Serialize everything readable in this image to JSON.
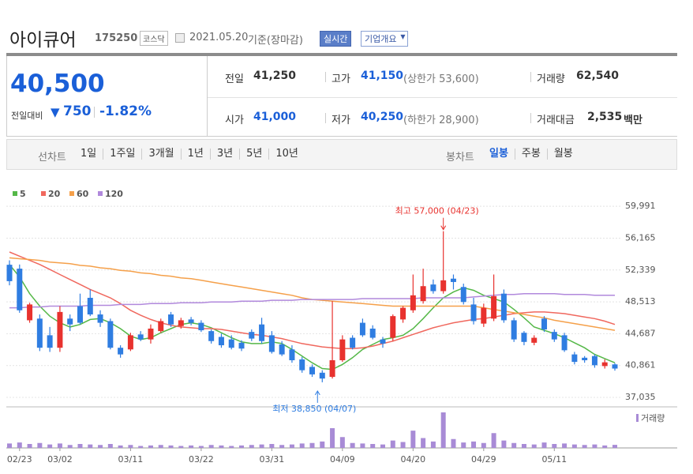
{
  "header": {
    "title": "아이큐어",
    "code": "175250",
    "market": "코스닥",
    "date": "2021.05.20",
    "basis": "기준(장마감)",
    "buttons": [
      "실시간",
      "기업개요"
    ]
  },
  "quote": {
    "price": "40,500",
    "change_label": "전일대비",
    "change": "750",
    "change_rate": "-1.82%",
    "fields": [
      {
        "label": "전일",
        "value": "41,250"
      },
      {
        "label": "고가",
        "value": "41,150",
        "note": "(상한가 53,600)"
      },
      {
        "label": "거래량",
        "value": "62,540"
      },
      {
        "label": "시가",
        "value": "41,000"
      },
      {
        "label": "저가",
        "value": "40,250",
        "note": "(하한가 28,900)"
      },
      {
        "label": "거래대금",
        "value": "2,535",
        "unit": "백만"
      }
    ]
  },
  "tabs": {
    "line_label": "선차트",
    "line": [
      "1일",
      "1주일",
      "3개월",
      "1년",
      "3년",
      "5년",
      "10년"
    ],
    "candle_label": "봉차트",
    "candle": [
      "일봉",
      "주봉",
      "월봉"
    ]
  },
  "chart_data": [
    {
      "type": "candlestick",
      "categories": [
        null,
        "02/23",
        null,
        null,
        null,
        "03/02",
        null,
        null,
        null,
        null,
        null,
        null,
        "03/11",
        null,
        null,
        null,
        null,
        null,
        null,
        "03/22",
        null,
        null,
        null,
        null,
        null,
        null,
        "03/31",
        null,
        null,
        null,
        null,
        null,
        null,
        "04/09",
        null,
        null,
        null,
        null,
        null,
        null,
        "04/20",
        null,
        null,
        null,
        null,
        null,
        null,
        "04/29",
        null,
        null,
        null,
        null,
        null,
        null,
        "05/11",
        null,
        null,
        null,
        null,
        null,
        null
      ],
      "open": [
        52970,
        52500,
        46300,
        46500,
        44500,
        43000,
        46500,
        48000,
        49000,
        47000,
        46200,
        43000,
        42800,
        44600,
        44000,
        45000,
        47000,
        45600,
        46400,
        46000,
        45000,
        44300,
        44000,
        43600,
        44900,
        45800,
        44500,
        43400,
        42800,
        41600,
        40700,
        40000,
        39500,
        41500,
        44200,
        46000,
        45300,
        44000,
        44200,
        46400,
        47500,
        48600,
        50600,
        49800,
        51300,
        50300,
        48200,
        45900,
        46500,
        49500,
        46300,
        44800,
        43600,
        46500,
        44900,
        44500,
        42200,
        41800,
        42000,
        40800,
        41000
      ],
      "high": [
        53500,
        53000,
        48400,
        47000,
        45500,
        48000,
        47000,
        49500,
        50000,
        47500,
        46500,
        43300,
        44800,
        45000,
        45800,
        46500,
        47300,
        46600,
        46700,
        46300,
        45200,
        44700,
        44500,
        43900,
        45200,
        46600,
        45000,
        43800,
        43300,
        41900,
        41000,
        40300,
        48600,
        44500,
        44500,
        46500,
        45700,
        44300,
        47000,
        48000,
        51800,
        52500,
        51200,
        57000,
        51800,
        50700,
        49000,
        48300,
        51800,
        50000,
        46600,
        45000,
        44500,
        46800,
        45200,
        44800,
        42500,
        42000,
        42200,
        41600,
        41150
      ],
      "low": [
        50500,
        47200,
        46000,
        42600,
        42500,
        42500,
        45000,
        45800,
        46800,
        45500,
        42800,
        41800,
        42600,
        43800,
        43500,
        44800,
        45500,
        45300,
        45700,
        44900,
        43500,
        43000,
        42800,
        42600,
        43800,
        43500,
        42300,
        42000,
        41200,
        40000,
        39500,
        38850,
        39300,
        41300,
        42800,
        44300,
        44000,
        43000,
        43800,
        46000,
        47200,
        48300,
        49500,
        49500,
        50000,
        48200,
        45800,
        45500,
        46200,
        46000,
        43700,
        43300,
        43300,
        44900,
        43700,
        42500,
        41000,
        41200,
        40600,
        40500,
        40250
      ],
      "close": [
        51000,
        47500,
        48200,
        43000,
        43000,
        47300,
        45800,
        46000,
        47000,
        46000,
        43000,
        42200,
        44500,
        44000,
        45300,
        46200,
        45800,
        46300,
        46000,
        45100,
        43800,
        43300,
        43000,
        42900,
        44100,
        43800,
        42500,
        42200,
        41500,
        40300,
        39800,
        39300,
        41500,
        44000,
        43000,
        44500,
        44200,
        43500,
        46800,
        47800,
        49300,
        50400,
        49800,
        51100,
        50900,
        48500,
        46200,
        47800,
        49200,
        46300,
        44000,
        43700,
        44200,
        45200,
        44000,
        42700,
        41300,
        41500,
        40900,
        41250,
        40500
      ],
      "up_color": "#e8322e",
      "down_color": "#2f7de1",
      "series": [
        {
          "name": "5",
          "color": "#55b848",
          "values": [
            53000,
            51500,
            49500,
            48000,
            46800,
            46000,
            45500,
            45800,
            46400,
            46500,
            46000,
            45300,
            44400,
            44000,
            44200,
            44800,
            45300,
            45800,
            46000,
            45800,
            45400,
            44800,
            44200,
            43700,
            43500,
            43500,
            43700,
            43500,
            42800,
            42000,
            41200,
            40500,
            40400,
            41000,
            41800,
            42800,
            43400,
            44000,
            44200,
            44500,
            45300,
            46500,
            47800,
            49000,
            49700,
            50200,
            49900,
            49300,
            48900,
            48500,
            47600,
            46600,
            45500,
            45100,
            44700,
            44200,
            43600,
            43000,
            42200,
            41700,
            41200
          ]
        },
        {
          "name": "20",
          "color": "#f0685e",
          "values": [
            54500,
            54000,
            53500,
            53000,
            52400,
            51800,
            51200,
            50600,
            50000,
            49500,
            49000,
            48300,
            47500,
            46900,
            46400,
            46000,
            45700,
            45500,
            45400,
            45300,
            45300,
            45200,
            45000,
            44800,
            44600,
            44500,
            44300,
            44100,
            43800,
            43500,
            43300,
            43100,
            43000,
            42900,
            42900,
            43000,
            43200,
            43500,
            43800,
            44200,
            44600,
            45000,
            45400,
            45700,
            46000,
            46200,
            46400,
            46500,
            46700,
            46900,
            47100,
            47200,
            47300,
            47300,
            47200,
            47100,
            46900,
            46700,
            46500,
            46200,
            45800
          ]
        },
        {
          "name": "60",
          "color": "#f5a04a",
          "values": [
            53800,
            53700,
            53600,
            53500,
            53300,
            53200,
            53100,
            52900,
            52800,
            52600,
            52500,
            52300,
            52200,
            52000,
            51900,
            51700,
            51600,
            51400,
            51300,
            51100,
            50900,
            50700,
            50500,
            50300,
            50100,
            49900,
            49700,
            49500,
            49300,
            49000,
            48800,
            48700,
            48600,
            48500,
            48400,
            48300,
            48200,
            48100,
            48000,
            48000,
            48000,
            48000,
            48000,
            48000,
            48000,
            48000,
            48000,
            47800,
            47600,
            47400,
            47200,
            47000,
            46800,
            46600,
            46300,
            46100,
            45900,
            45700,
            45500,
            45300,
            45100
          ]
        },
        {
          "name": "120",
          "color": "#b189dc",
          "values": [
            47800,
            47800,
            47900,
            47900,
            48000,
            48000,
            48000,
            48000,
            48100,
            48100,
            48100,
            48200,
            48200,
            48200,
            48300,
            48300,
            48300,
            48400,
            48400,
            48400,
            48500,
            48500,
            48500,
            48600,
            48600,
            48600,
            48700,
            48700,
            48700,
            48800,
            48800,
            48800,
            48800,
            48800,
            48800,
            48900,
            48900,
            48900,
            48900,
            48900,
            48900,
            49000,
            49000,
            49000,
            49000,
            49000,
            49100,
            49200,
            49300,
            49400,
            49400,
            49500,
            49500,
            49500,
            49500,
            49400,
            49400,
            49400,
            49300,
            49300,
            49300
          ]
        }
      ],
      "annotations": [
        "최고 57,000 (04/23)",
        "최저 38,850 (04/07)"
      ],
      "ylim": [
        35900,
        62000
      ],
      "yticks": [
        {
          "value": 59991,
          "label": "59,991"
        },
        {
          "value": 56165,
          "label": "56,165"
        },
        {
          "value": 52339,
          "label": "52,339"
        },
        {
          "value": 48513,
          "label": "48,513"
        },
        {
          "value": 44687,
          "label": "44,687"
        },
        {
          "value": 40861,
          "label": "40,861"
        },
        {
          "value": 37035,
          "label": "37,035"
        }
      ],
      "grid": true
    },
    {
      "type": "bar",
      "name": "거래량",
      "color": "#a88bd6",
      "values": [
        90000,
        110000,
        80000,
        100000,
        70000,
        90000,
        60000,
        80000,
        70000,
        60000,
        80000,
        50000,
        60000,
        40000,
        50000,
        60000,
        50000,
        40000,
        50000,
        40000,
        60000,
        50000,
        40000,
        50000,
        60000,
        70000,
        80000,
        60000,
        70000,
        90000,
        100000,
        130000,
        400000,
        220000,
        100000,
        90000,
        80000,
        70000,
        150000,
        120000,
        350000,
        200000,
        130000,
        720000,
        180000,
        110000,
        130000,
        100000,
        300000,
        150000,
        100000,
        80000,
        70000,
        110000,
        80000,
        90000,
        70000,
        60000,
        70000,
        50000,
        62540
      ],
      "ylim": [
        0,
        800000
      ]
    }
  ]
}
